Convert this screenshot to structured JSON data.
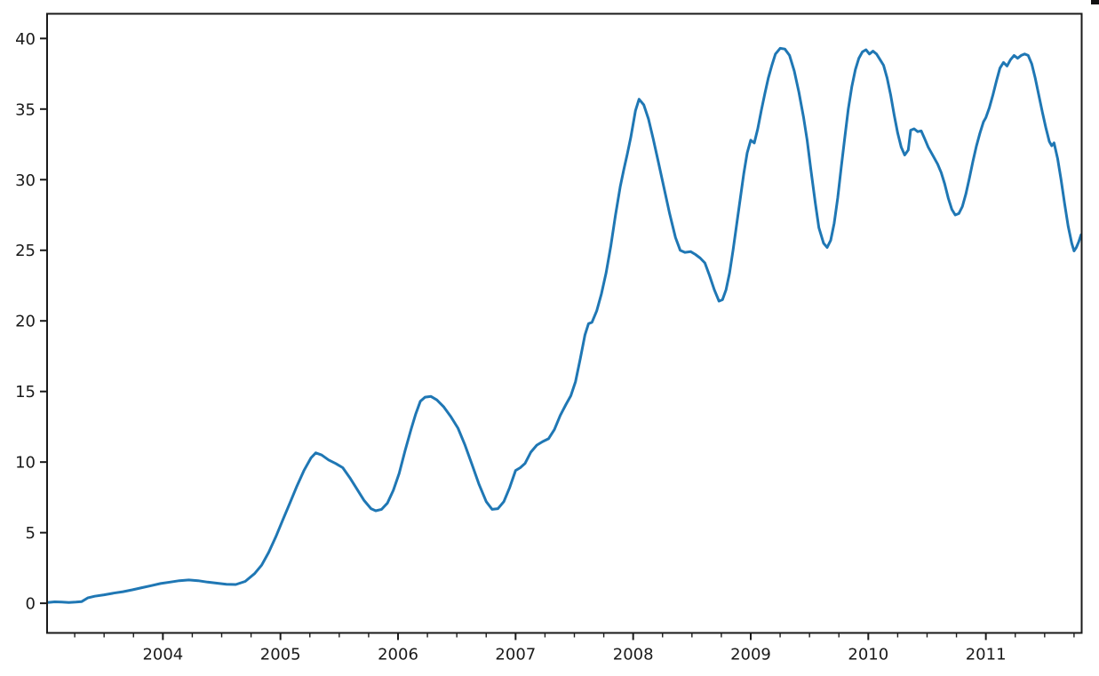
{
  "figure": {
    "background": "#ffffff",
    "spine_color": "#1a1a1a",
    "tick_color": "#1a1a1a",
    "tick_label_color": "#1a1a1a",
    "tick_label_font_px": 18,
    "corner_artifact_color": "#111111"
  },
  "chart_data": {
    "type": "line",
    "title": "",
    "xlabel": "",
    "ylabel": "",
    "grid": false,
    "legend": null,
    "xlim": [
      2003.015,
      2011.815
    ],
    "ylim": [
      -2.1,
      41.75
    ],
    "x_major_ticks": [
      2004,
      2005,
      2006,
      2007,
      2008,
      2009,
      2010,
      2011
    ],
    "x_tick_labels": [
      "2004",
      "2005",
      "2006",
      "2007",
      "2008",
      "2009",
      "2010",
      "2011"
    ],
    "x_minor_tick_interval": 0.25,
    "y_major_ticks": [
      0,
      5,
      10,
      15,
      20,
      25,
      30,
      35,
      40
    ],
    "y_tick_labels": [
      "0",
      "5",
      "10",
      "15",
      "20",
      "25",
      "30",
      "35",
      "40"
    ],
    "series": [
      {
        "name": "series-1",
        "color": "#1f77b4",
        "line_width": 3,
        "x": [
          2003.02,
          2003.08,
          2003.14,
          2003.2,
          2003.26,
          2003.31,
          2003.36,
          2003.42,
          2003.5,
          2003.58,
          2003.66,
          2003.74,
          2003.82,
          2003.9,
          2003.98,
          2004.06,
          2004.14,
          2004.22,
          2004.3,
          2004.38,
          2004.46,
          2004.54,
          2004.62,
          2004.7,
          2004.78,
          2004.84,
          2004.9,
          2004.96,
          2005.02,
          2005.08,
          2005.14,
          2005.2,
          2005.26,
          2005.3,
          2005.35,
          2005.41,
          2005.47,
          2005.53,
          2005.59,
          2005.65,
          2005.71,
          2005.77,
          2005.81,
          2005.86,
          2005.91,
          2005.96,
          2006.01,
          2006.06,
          2006.11,
          2006.15,
          2006.19,
          2006.23,
          2006.28,
          2006.33,
          2006.39,
          2006.45,
          2006.51,
          2006.57,
          2006.63,
          2006.69,
          2006.75,
          2006.8,
          2006.85,
          2006.9,
          2006.95,
          2007.0,
          2007.04,
          2007.08,
          2007.13,
          2007.18,
          2007.23,
          2007.28,
          2007.33,
          2007.38,
          2007.43,
          2007.47,
          2007.51,
          2007.55,
          2007.59,
          2007.62,
          2007.65,
          2007.69,
          2007.73,
          2007.77,
          2007.81,
          2007.85,
          2007.89,
          2007.92,
          2007.95,
          2007.98,
          2008.02,
          2008.05,
          2008.09,
          2008.13,
          2008.17,
          2008.21,
          2008.26,
          2008.31,
          2008.36,
          2008.4,
          2008.44,
          2008.49,
          2008.53,
          2008.57,
          2008.61,
          2008.65,
          2008.69,
          2008.73,
          2008.76,
          2008.79,
          2008.82,
          2008.85,
          2008.88,
          2008.91,
          2008.94,
          2008.97,
          2009.0,
          2009.03,
          2009.06,
          2009.09,
          2009.12,
          2009.15,
          2009.18,
          2009.21,
          2009.25,
          2009.29,
          2009.33,
          2009.37,
          2009.41,
          2009.45,
          2009.48,
          2009.51,
          2009.55,
          2009.58,
          2009.62,
          2009.65,
          2009.68,
          2009.71,
          2009.74,
          2009.77,
          2009.8,
          2009.83,
          2009.86,
          2009.89,
          2009.92,
          2009.95,
          2009.98,
          2010.01,
          2010.04,
          2010.07,
          2010.1,
          2010.13,
          2010.16,
          2010.19,
          2010.22,
          2010.25,
          2010.28,
          2010.31,
          2010.34,
          2010.36,
          2010.39,
          2010.42,
          2010.45,
          2010.48,
          2010.51,
          2010.55,
          2010.59,
          2010.62,
          2010.65,
          2010.68,
          2010.71,
          2010.74,
          2010.77,
          2010.8,
          2010.83,
          2010.86,
          2010.89,
          2010.92,
          2010.95,
          2010.98,
          2011.0,
          2011.03,
          2011.06,
          2011.09,
          2011.12,
          2011.15,
          2011.18,
          2011.21,
          2011.24,
          2011.27,
          2011.3,
          2011.33,
          2011.36,
          2011.39,
          2011.42,
          2011.45,
          2011.48,
          2011.51,
          2011.54,
          2011.56,
          2011.58,
          2011.61,
          2011.64,
          2011.67,
          2011.7,
          2011.73,
          2011.75,
          2011.77,
          2011.79,
          2011.81
        ],
        "y": [
          0.05,
          0.1,
          0.08,
          0.06,
          0.08,
          0.12,
          0.38,
          0.5,
          0.6,
          0.72,
          0.82,
          0.95,
          1.1,
          1.25,
          1.4,
          1.5,
          1.6,
          1.65,
          1.6,
          1.5,
          1.42,
          1.35,
          1.33,
          1.55,
          2.1,
          2.7,
          3.6,
          4.7,
          5.9,
          7.1,
          8.3,
          9.4,
          10.3,
          10.65,
          10.5,
          10.15,
          9.9,
          9.6,
          8.9,
          8.1,
          7.3,
          6.7,
          6.55,
          6.65,
          7.1,
          8.0,
          9.2,
          10.8,
          12.3,
          13.4,
          14.3,
          14.6,
          14.65,
          14.4,
          13.9,
          13.2,
          12.4,
          11.2,
          9.8,
          8.4,
          7.2,
          6.65,
          6.7,
          7.2,
          8.2,
          9.4,
          9.6,
          9.9,
          10.7,
          11.2,
          11.45,
          11.65,
          12.3,
          13.3,
          14.1,
          14.7,
          15.7,
          17.3,
          19.0,
          19.8,
          19.9,
          20.7,
          21.9,
          23.4,
          25.3,
          27.5,
          29.5,
          30.7,
          31.8,
          33.0,
          34.9,
          35.7,
          35.3,
          34.3,
          32.9,
          31.4,
          29.5,
          27.6,
          25.9,
          25.0,
          24.85,
          24.9,
          24.7,
          24.45,
          24.1,
          23.2,
          22.2,
          21.4,
          21.5,
          22.2,
          23.4,
          25.0,
          26.8,
          28.6,
          30.4,
          31.9,
          32.8,
          32.6,
          33.6,
          34.9,
          36.1,
          37.2,
          38.1,
          38.9,
          39.3,
          39.25,
          38.8,
          37.7,
          36.2,
          34.4,
          32.8,
          30.8,
          28.3,
          26.6,
          25.5,
          25.2,
          25.7,
          26.9,
          28.7,
          30.9,
          33.0,
          35.0,
          36.6,
          37.8,
          38.6,
          39.05,
          39.2,
          38.9,
          39.1,
          38.9,
          38.5,
          38.1,
          37.2,
          36.0,
          34.6,
          33.3,
          32.3,
          31.75,
          32.1,
          33.5,
          33.6,
          33.4,
          33.45,
          32.9,
          32.3,
          31.7,
          31.1,
          30.5,
          29.7,
          28.7,
          27.9,
          27.5,
          27.6,
          28.1,
          29.0,
          30.1,
          31.3,
          32.4,
          33.3,
          34.1,
          34.4,
          35.1,
          36.0,
          37.0,
          37.9,
          38.3,
          38.05,
          38.5,
          38.8,
          38.6,
          38.8,
          38.9,
          38.8,
          38.2,
          37.2,
          36.0,
          34.8,
          33.7,
          32.7,
          32.4,
          32.6,
          31.5,
          30.0,
          28.3,
          26.7,
          25.5,
          24.95,
          25.2,
          25.6,
          26.1
        ]
      }
    ]
  }
}
